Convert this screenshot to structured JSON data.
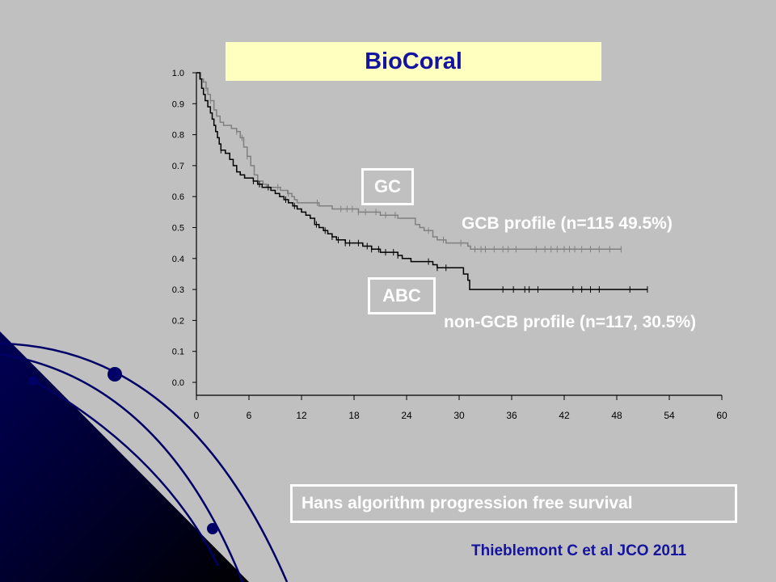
{
  "slide": {
    "title": "BioCoral",
    "gc_label": "GC",
    "abc_label": "ABC",
    "gcb_caption": "GCB profile (n=115 49.5%)",
    "nongcb_caption": "non-GCB profile (n=117, 30.5%)",
    "footer": "Hans algorithm progression free survival",
    "citation": "Thieblemont C et al JCO 2011"
  },
  "colors": {
    "background": "#c0c0c0",
    "title_bg": "#ffffc0",
    "title_text": "#1414a0",
    "gcb_series": "#808080",
    "nongcb_series": "#000000",
    "decoration": "#000066"
  },
  "chart_data": {
    "type": "line",
    "subtype": "kaplan-meier step",
    "title": "BioCoral",
    "xlabel": "",
    "ylabel": "",
    "xlim": [
      0,
      60
    ],
    "ylim": [
      0,
      1.0
    ],
    "x_ticks": [
      "0",
      "6",
      "12",
      "18",
      "24",
      "30",
      "36",
      "42",
      "48",
      "54",
      "60"
    ],
    "y_ticks": [
      "0.0",
      "0.1",
      "0.2",
      "0.3",
      "0.4",
      "0.5",
      "0.6",
      "0.7",
      "0.8",
      "0.9",
      "1.0"
    ],
    "grid": false,
    "series": [
      {
        "name": "GCB profile (n=115 49.5%)",
        "color": "#808080",
        "steps": [
          [
            0,
            1.0
          ],
          [
            0.5,
            0.98
          ],
          [
            0.8,
            0.97
          ],
          [
            1.1,
            0.95
          ],
          [
            1.3,
            0.93
          ],
          [
            1.6,
            0.91
          ],
          [
            2.0,
            0.88
          ],
          [
            2.3,
            0.86
          ],
          [
            2.7,
            0.84
          ],
          [
            3.1,
            0.83
          ],
          [
            4.0,
            0.82
          ],
          [
            4.6,
            0.81
          ],
          [
            5.0,
            0.79
          ],
          [
            5.4,
            0.76
          ],
          [
            5.8,
            0.73
          ],
          [
            6.2,
            0.7
          ],
          [
            6.6,
            0.67
          ],
          [
            7.0,
            0.65
          ],
          [
            7.6,
            0.64
          ],
          [
            8.0,
            0.63
          ],
          [
            9.6,
            0.62
          ],
          [
            10.4,
            0.61
          ],
          [
            10.9,
            0.6
          ],
          [
            11.2,
            0.59
          ],
          [
            11.5,
            0.58
          ],
          [
            14.0,
            0.57
          ],
          [
            15.5,
            0.56
          ],
          [
            18.5,
            0.55
          ],
          [
            21.0,
            0.54
          ],
          [
            23.0,
            0.53
          ],
          [
            25.0,
            0.51
          ],
          [
            25.5,
            0.5
          ],
          [
            26.0,
            0.49
          ],
          [
            27.0,
            0.47
          ],
          [
            27.5,
            0.46
          ],
          [
            28.5,
            0.45
          ],
          [
            31.0,
            0.44
          ],
          [
            31.3,
            0.43
          ],
          [
            48.5,
            0.43
          ]
        ],
        "censor_x": [
          1.1,
          1.6,
          4.6,
          5.2,
          5.8,
          9.3,
          10.5,
          13.8,
          16.5,
          17.2,
          17.8,
          18.5,
          19.3,
          20.5,
          21.6,
          22.7,
          26.5,
          28.2,
          30.2,
          31.8,
          32.5,
          33.0,
          34.0,
          35.0,
          35.6,
          36.5,
          38.8,
          39.8,
          40.5,
          41.2,
          42.0,
          42.6,
          43.2,
          44.0,
          45.0,
          46.0,
          47.2,
          48.5
        ]
      },
      {
        "name": "non-GCB profile (n=117, 30.5%)",
        "color": "#000000",
        "steps": [
          [
            0,
            1.0
          ],
          [
            0.4,
            0.98
          ],
          [
            0.6,
            0.95
          ],
          [
            0.8,
            0.93
          ],
          [
            1.0,
            0.91
          ],
          [
            1.3,
            0.89
          ],
          [
            1.6,
            0.87
          ],
          [
            1.8,
            0.85
          ],
          [
            2.0,
            0.83
          ],
          [
            2.2,
            0.81
          ],
          [
            2.4,
            0.79
          ],
          [
            2.6,
            0.77
          ],
          [
            2.8,
            0.75
          ],
          [
            3.3,
            0.74
          ],
          [
            3.8,
            0.72
          ],
          [
            4.2,
            0.7
          ],
          [
            4.6,
            0.68
          ],
          [
            5.0,
            0.67
          ],
          [
            5.5,
            0.66
          ],
          [
            6.5,
            0.65
          ],
          [
            7.0,
            0.64
          ],
          [
            7.5,
            0.63
          ],
          [
            8.5,
            0.62
          ],
          [
            9.0,
            0.61
          ],
          [
            9.5,
            0.6
          ],
          [
            10.0,
            0.59
          ],
          [
            10.5,
            0.58
          ],
          [
            11.0,
            0.57
          ],
          [
            11.5,
            0.56
          ],
          [
            12.0,
            0.55
          ],
          [
            12.5,
            0.54
          ],
          [
            13.0,
            0.53
          ],
          [
            13.5,
            0.51
          ],
          [
            14.0,
            0.5
          ],
          [
            14.5,
            0.49
          ],
          [
            15.0,
            0.48
          ],
          [
            15.5,
            0.47
          ],
          [
            16.0,
            0.46
          ],
          [
            17.0,
            0.45
          ],
          [
            19.0,
            0.44
          ],
          [
            20.0,
            0.43
          ],
          [
            21.0,
            0.42
          ],
          [
            23.0,
            0.41
          ],
          [
            23.5,
            0.4
          ],
          [
            24.5,
            0.39
          ],
          [
            27.0,
            0.38
          ],
          [
            27.5,
            0.37
          ],
          [
            30.5,
            0.35
          ],
          [
            31.0,
            0.33
          ],
          [
            31.2,
            0.3
          ],
          [
            51.5,
            0.3
          ]
        ],
        "censor_x": [
          2.8,
          6.5,
          7.2,
          8.2,
          10.2,
          11.2,
          13.7,
          14.7,
          15.5,
          16.2,
          17.0,
          17.5,
          18.5,
          19.5,
          20.0,
          20.8,
          21.6,
          22.5,
          23.0,
          26.5,
          27.5,
          28.5,
          35.0,
          36.2,
          37.5,
          38.0,
          39.0,
          43.0,
          44.0,
          45.0,
          46.0,
          49.5,
          51.5
        ]
      }
    ]
  }
}
